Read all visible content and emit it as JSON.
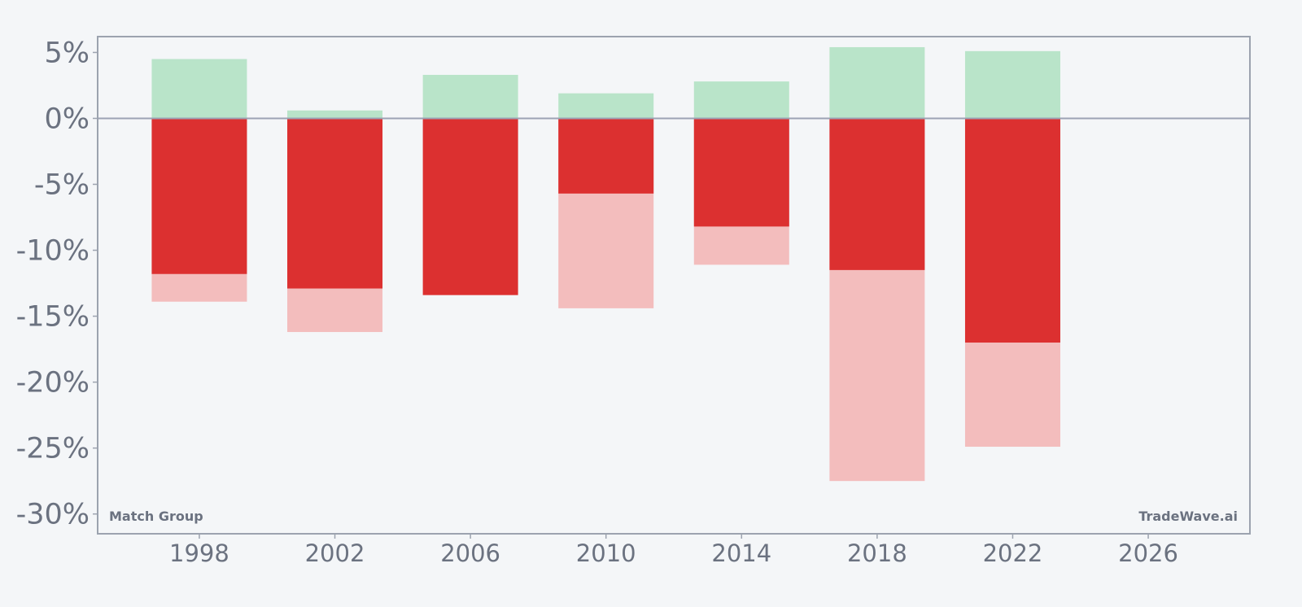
{
  "chart_data": {
    "type": "bar",
    "x": [
      1998,
      2002,
      2006,
      2010,
      2014,
      2018,
      2022
    ],
    "series": [
      {
        "values": [
          4.5,
          0.6,
          3.3,
          1.9,
          2.8,
          5.4,
          5.1
        ]
      },
      {
        "values": [
          -11.8,
          -12.9,
          -13.4,
          -5.7,
          -8.2,
          -11.5,
          -17.0
        ]
      },
      {
        "values": [
          -13.9,
          -16.2,
          -13.4,
          -14.4,
          -11.1,
          -27.5,
          -24.9
        ]
      }
    ],
    "xlim": [
      1995,
      2029
    ],
    "ylim": [
      -31.5,
      6.2
    ],
    "yticks": [
      5,
      0,
      -5,
      -10,
      -15,
      -20,
      -25,
      -30
    ],
    "ytick_labels": [
      "5%",
      "0%",
      "-5%",
      "-10%",
      "-15%",
      "-20%",
      "-25%",
      "-30%"
    ],
    "xticks": [
      1998,
      2002,
      2006,
      2010,
      2014,
      2018,
      2022,
      2026
    ],
    "xtick_labels": [
      "1998",
      "2002",
      "2006",
      "2010",
      "2014",
      "2018",
      "2022",
      "2026"
    ],
    "grid": false,
    "annotations": {
      "company": "Match Group",
      "source": "TradeWave.ai"
    },
    "colors": {
      "gain": "#b9e4c9",
      "drawdown": "#dc3030",
      "extended_drawdown": "#f3bdbd",
      "axis": "#9ca3af",
      "zero_line": "#9ca3b4",
      "text": "#6b7280"
    }
  }
}
